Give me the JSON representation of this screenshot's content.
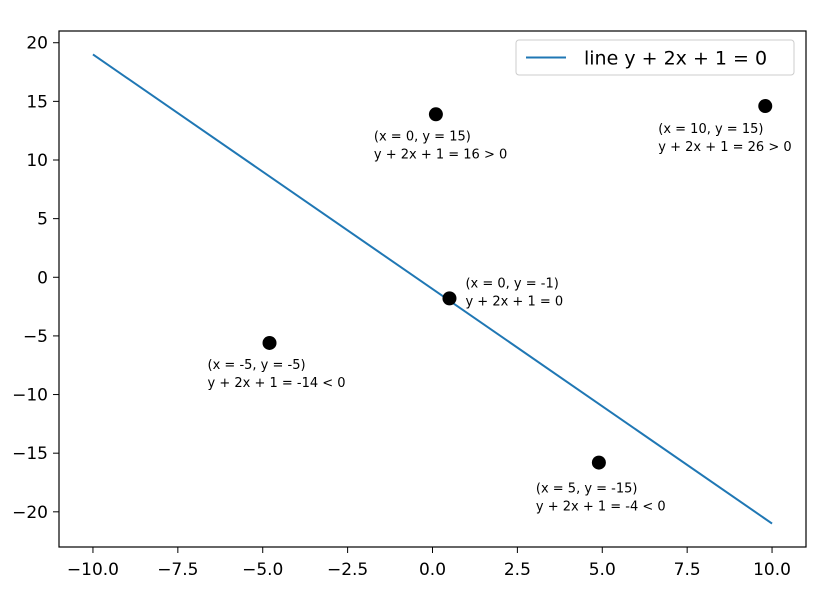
{
  "chart_data": {
    "type": "scatter",
    "title": "",
    "xlabel": "",
    "ylabel": "",
    "xlim": [
      -11.0,
      11.0
    ],
    "ylim": [
      -23.0,
      21.0
    ],
    "grid": false,
    "legend_position": "top-right",
    "x_ticks": [
      "−10.0",
      "−7.5",
      "−5.0",
      "−2.5",
      "0.0",
      "2.5",
      "5.0",
      "7.5",
      "10.0"
    ],
    "y_ticks": [
      "20",
      "15",
      "10",
      "5",
      "0",
      "−5",
      "−10",
      "−15",
      "−20"
    ],
    "line": {
      "name": "line y + 2x + 1 = 0",
      "color": "#1f77b4",
      "x": [
        -10,
        10
      ],
      "y": [
        19,
        -21
      ]
    },
    "points": [
      {
        "x": 0.1,
        "y": 13.9,
        "label_line1": "(x = 0, y = 15)",
        "label_line2": "y + 2x + 1 = 16 > 0"
      },
      {
        "x": 9.8,
        "y": 14.6,
        "label_line1": "(x = 10, y = 15)",
        "label_line2": "y + 2x + 1 = 26 > 0"
      },
      {
        "x": 0.5,
        "y": -1.8,
        "label_line1": "(x = 0, y = -1)",
        "label_line2": "y + 2x + 1 = 0"
      },
      {
        "x": -4.8,
        "y": -5.6,
        "label_line1": "(x = -5, y = -5)",
        "label_line2": "y + 2x + 1 = -14 < 0"
      },
      {
        "x": 4.9,
        "y": -15.8,
        "label_line1": "(x = 5, y = -15)",
        "label_line2": "y + 2x + 1 = -4 < 0"
      }
    ],
    "point_color": "#000000"
  }
}
